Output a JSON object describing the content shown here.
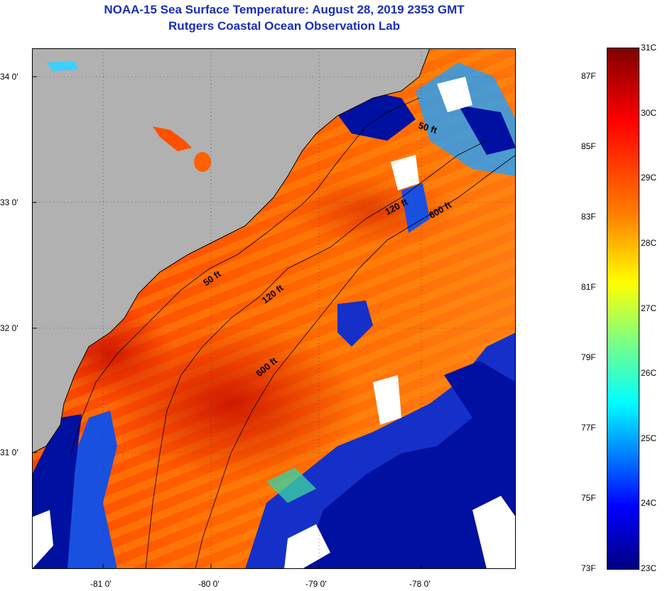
{
  "title_line1": "NOAA-15 Sea Surface Temperature:  August 28, 2019 2353 GMT",
  "title_line2": "Rutgers Coastal Ocean Observation Lab",
  "axes": {
    "longitude_ticks": [
      "-81 0'",
      "-80 0'",
      "-79 0'",
      "-78 0'"
    ],
    "latitude_ticks": [
      "34 0'",
      "33 0'",
      "32 0'",
      "31 0'"
    ]
  },
  "contours": [
    {
      "label": "50 ft"
    },
    {
      "label": "50 ft"
    },
    {
      "label": "120 ft"
    },
    {
      "label": "120 ft"
    },
    {
      "label": "600 ft"
    },
    {
      "label": "600 ft"
    }
  ],
  "colorbar": {
    "celsius_labels": [
      "31C",
      "30C",
      "29C",
      "28C",
      "27C",
      "26C",
      "25C",
      "24C",
      "23C"
    ],
    "fahrenheit_labels": [
      "87F",
      "85F",
      "83F",
      "81F",
      "79F",
      "77F",
      "75F",
      "73F"
    ],
    "range_c": [
      23,
      31
    ],
    "range_f": [
      73,
      87.8
    ]
  },
  "colors": {
    "title": "#1a2fb3",
    "land": "#b1b1b1",
    "warm": "#ff5a00",
    "hot": "#d81800",
    "cold": "#0010a0",
    "cloud": "#ffffff"
  }
}
